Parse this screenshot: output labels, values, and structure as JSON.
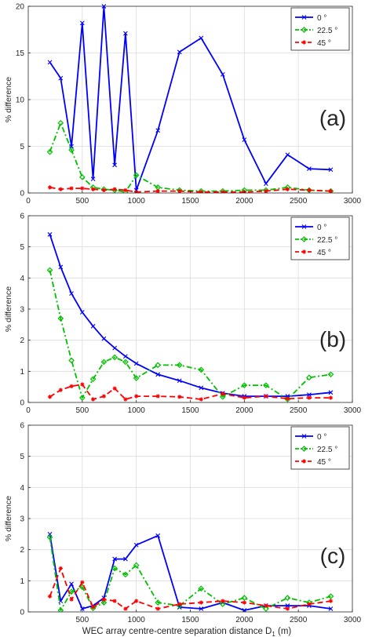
{
  "figure": {
    "xlabel": "WEC array centre-centre separation distance D",
    "xlabel_sub": "1",
    "xlabel_unit": " (m)"
  },
  "chart_data": [
    {
      "type": "line",
      "panel_label": "(a)",
      "xlabel": "",
      "ylabel": "% difference",
      "xlim": [
        0,
        3000
      ],
      "ylim": [
        0,
        20
      ],
      "xticks": [
        0,
        500,
        1000,
        1500,
        2000,
        2500,
        3000
      ],
      "yticks": [
        0,
        5,
        10,
        15,
        20
      ],
      "grid": true,
      "legend_position": "top-right",
      "series": [
        {
          "name": "0 °",
          "color": "#0000ff",
          "dash": "solid",
          "marker": "x",
          "x": [
            200,
            300,
            400,
            500,
            600,
            700,
            800,
            900,
            1000,
            1200,
            1400,
            1600,
            1800,
            2000,
            2200,
            2400,
            2600,
            2800
          ],
          "y": [
            14.0,
            12.3,
            5.0,
            18.2,
            1.5,
            20.0,
            3.0,
            17.1,
            0.3,
            6.7,
            15.1,
            16.6,
            12.7,
            5.7,
            1.0,
            4.1,
            2.6,
            2.5
          ]
        },
        {
          "name": "22.5 °",
          "color": "#00c000",
          "dash": "dashdot",
          "marker": "diamond",
          "x": [
            200,
            300,
            400,
            500,
            600,
            700,
            800,
            900,
            1000,
            1200,
            1400,
            1600,
            1800,
            2000,
            2200,
            2400,
            2600,
            2800
          ],
          "y": [
            4.4,
            7.5,
            4.6,
            1.7,
            0.6,
            0.4,
            0.3,
            0.1,
            1.9,
            0.6,
            0.3,
            0.2,
            0.2,
            0.3,
            0.3,
            0.6,
            0.3,
            0.2
          ]
        },
        {
          "name": "45 °",
          "color": "#ff0000",
          "dash": "dashed",
          "marker": "star",
          "x": [
            200,
            300,
            400,
            500,
            600,
            700,
            800,
            900,
            1000,
            1200,
            1400,
            1600,
            1800,
            2000,
            2200,
            2400,
            2600,
            2800
          ],
          "y": [
            0.6,
            0.4,
            0.5,
            0.5,
            0.4,
            0.3,
            0.4,
            0.3,
            0.1,
            0.2,
            0.2,
            0.1,
            0.1,
            0.1,
            0.2,
            0.4,
            0.3,
            0.2
          ]
        }
      ]
    },
    {
      "type": "line",
      "panel_label": "(b)",
      "xlabel": "",
      "ylabel": "% difference",
      "xlim": [
        0,
        3000
      ],
      "ylim": [
        0,
        6
      ],
      "xticks": [
        0,
        500,
        1000,
        1500,
        2000,
        2500,
        3000
      ],
      "yticks": [
        0,
        1,
        2,
        3,
        4,
        5,
        6
      ],
      "grid": true,
      "legend_position": "top-right",
      "series": [
        {
          "name": "0 °",
          "color": "#0000ff",
          "dash": "solid",
          "marker": "x",
          "x": [
            200,
            300,
            400,
            500,
            600,
            700,
            800,
            900,
            1000,
            1200,
            1400,
            1600,
            1800,
            2000,
            2200,
            2400,
            2600,
            2800
          ],
          "y": [
            5.4,
            4.35,
            3.5,
            2.9,
            2.45,
            2.05,
            1.75,
            1.48,
            1.25,
            0.9,
            0.7,
            0.47,
            0.3,
            0.2,
            0.2,
            0.2,
            0.25,
            0.32
          ]
        },
        {
          "name": "22.5 °",
          "color": "#00c000",
          "dash": "dashdot",
          "marker": "diamond",
          "x": [
            200,
            300,
            400,
            500,
            600,
            700,
            800,
            900,
            1000,
            1200,
            1400,
            1600,
            1800,
            2000,
            2200,
            2400,
            2600,
            2800
          ],
          "y": [
            4.25,
            2.7,
            1.35,
            0.15,
            0.75,
            1.3,
            1.45,
            1.3,
            0.78,
            1.2,
            1.2,
            1.05,
            0.18,
            0.55,
            0.55,
            0.1,
            0.8,
            0.9
          ]
        },
        {
          "name": "45 °",
          "color": "#ff0000",
          "dash": "dashed",
          "marker": "star",
          "x": [
            200,
            300,
            400,
            500,
            600,
            700,
            800,
            900,
            1000,
            1200,
            1400,
            1600,
            1800,
            2000,
            2200,
            2400,
            2600,
            2800
          ],
          "y": [
            0.18,
            0.4,
            0.52,
            0.58,
            0.1,
            0.2,
            0.45,
            0.1,
            0.2,
            0.2,
            0.18,
            0.1,
            0.28,
            0.15,
            0.2,
            0.12,
            0.15,
            0.15
          ]
        }
      ]
    },
    {
      "type": "line",
      "panel_label": "(c)",
      "xlabel": "WEC array centre-centre separation distance D1 (m)",
      "ylabel": "% difference",
      "xlim": [
        0,
        3000
      ],
      "ylim": [
        0,
        6
      ],
      "xticks": [
        500,
        1000,
        1500,
        2000,
        2500,
        3000
      ],
      "yticks": [
        0,
        1,
        2,
        3,
        4,
        5,
        6
      ],
      "grid": true,
      "legend_position": "top-right",
      "series": [
        {
          "name": "0 °",
          "color": "#0000ff",
          "dash": "solid",
          "marker": "x",
          "x": [
            200,
            300,
            400,
            500,
            600,
            700,
            800,
            900,
            1000,
            1200,
            1400,
            1600,
            1800,
            2000,
            2200,
            2400,
            2600,
            2800
          ],
          "y": [
            2.5,
            0.35,
            0.9,
            0.1,
            0.2,
            0.45,
            1.7,
            1.7,
            2.15,
            2.45,
            0.15,
            0.1,
            0.3,
            0.05,
            0.2,
            0.2,
            0.2,
            0.1
          ]
        },
        {
          "name": "22.5 °",
          "color": "#00c000",
          "dash": "dashdot",
          "marker": "diamond",
          "x": [
            200,
            300,
            400,
            500,
            600,
            700,
            800,
            900,
            1000,
            1200,
            1400,
            1600,
            1800,
            2000,
            2200,
            2400,
            2600,
            2800
          ],
          "y": [
            2.4,
            0.05,
            0.65,
            0.8,
            0.12,
            0.3,
            1.4,
            1.2,
            1.5,
            0.3,
            0.2,
            0.75,
            0.25,
            0.45,
            0.1,
            0.45,
            0.3,
            0.5
          ]
        },
        {
          "name": "45 °",
          "color": "#ff0000",
          "dash": "dashed",
          "marker": "star",
          "x": [
            200,
            300,
            400,
            500,
            600,
            700,
            800,
            900,
            1000,
            1200,
            1400,
            1600,
            1800,
            2000,
            2200,
            2400,
            2600,
            2800
          ],
          "y": [
            0.5,
            1.4,
            0.4,
            0.95,
            0.15,
            0.4,
            0.35,
            0.1,
            0.35,
            0.1,
            0.25,
            0.3,
            0.35,
            0.3,
            0.2,
            0.1,
            0.25,
            0.35
          ]
        }
      ]
    }
  ]
}
